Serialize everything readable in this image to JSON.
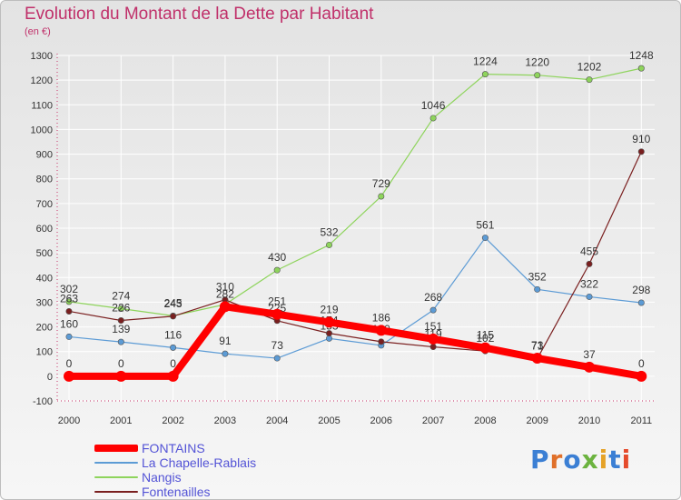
{
  "title": "Evolution du Montant de la Dette par Habitant",
  "unit": "(en €)",
  "colors": {
    "title": "#c0306a",
    "legend_text": "#5353d6",
    "axis_text": "#333333",
    "grid": "#ffffff"
  },
  "logo": {
    "text": "Proxiti",
    "letter_colors": [
      "#3b7fd4",
      "#e0702a",
      "#3b7fd4",
      "#6cb33f",
      "#e5a227",
      "#3b7fd4",
      "#e54b2c"
    ]
  },
  "chart_data": {
    "type": "line",
    "title": "Evolution du Montant de la Dette par Habitant",
    "ylabel": "(en €)",
    "xlabel": "",
    "ylim": [
      -100,
      1300
    ],
    "yticks": [
      -100,
      0,
      100,
      200,
      300,
      400,
      500,
      600,
      700,
      800,
      900,
      1000,
      1100,
      1200,
      1300
    ],
    "categories": [
      "2000",
      "2001",
      "2002",
      "2003",
      "2004",
      "2005",
      "2006",
      "2007",
      "2008",
      "2009",
      "2010",
      "2011"
    ],
    "grid": true,
    "legend": "bottom-left",
    "series": [
      {
        "name": "FONTAINS",
        "color": "#ff0000",
        "emphasis": true,
        "values": [
          0,
          0,
          0,
          282,
          251,
          219,
          186,
          151,
          115,
          73,
          37,
          0
        ],
        "labels": [
          "0",
          "0",
          "0",
          "282",
          "251",
          "219",
          "186",
          "151",
          "115",
          "73",
          "37",
          "0"
        ]
      },
      {
        "name": "La Chapelle-Rablais",
        "color": "#5c9bd5",
        "values": [
          160,
          139,
          116,
          91,
          73,
          153,
          125,
          268,
          561,
          352,
          322,
          298
        ],
        "labels": [
          "160",
          "139",
          "116",
          "91",
          "73",
          "153",
          "",
          "268",
          "561",
          "352",
          "322",
          "298"
        ]
      },
      {
        "name": "Nangis",
        "color": "#8ed45c",
        "values": [
          302,
          274,
          245,
          291,
          430,
          532,
          729,
          1046,
          1224,
          1220,
          1202,
          1248
        ],
        "labels": [
          "302",
          "274",
          "245",
          "",
          "430",
          "532",
          "729",
          "1046",
          "1224",
          "1220",
          "1202",
          "1248"
        ]
      },
      {
        "name": "Fontenailles",
        "color": "#7a1f1f",
        "values": [
          263,
          226,
          243,
          310,
          225,
          174,
          140,
          119,
          102,
          71,
          455,
          910
        ],
        "labels": [
          "263",
          "226",
          "243",
          "310",
          "225",
          "174",
          "140",
          "119",
          "102",
          "71",
          "455",
          "910"
        ]
      }
    ]
  }
}
